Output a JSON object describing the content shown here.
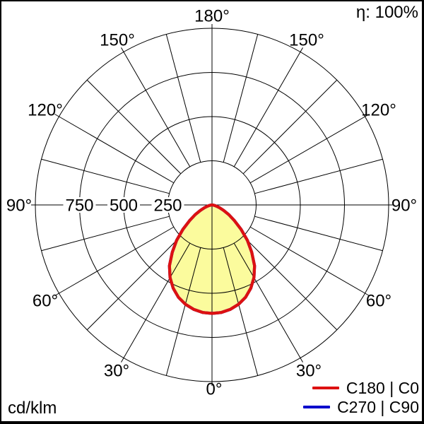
{
  "header": {
    "efficiency_label": "η: 100%"
  },
  "footer": {
    "unit_label": "cd/klm"
  },
  "legend": {
    "items": [
      {
        "label": "C180 | C0",
        "color": "#dd1111"
      },
      {
        "label": "C270 | C90",
        "color": "#0000cc"
      }
    ]
  },
  "chart_data": {
    "type": "polar",
    "subtype": "luminous-intensity-distribution",
    "unit": "cd/klm",
    "efficiency": "η: 100%",
    "orientation": "0° at bottom, 180° at top",
    "grid": {
      "rmax": 1000,
      "radial_ticks": [
        250,
        500,
        750,
        1000
      ],
      "radial_tick_labels": [
        "250",
        "500",
        "750"
      ],
      "angle_step_deg": 15,
      "angle_label_step_deg": 30,
      "grid_color": "#000000",
      "background": "#ffffff"
    },
    "angle_labels": [
      "0°",
      "30°",
      "60°",
      "90°",
      "120°",
      "150°",
      "180°"
    ],
    "series": [
      {
        "name": "C180 | C0",
        "color": "#dd1111",
        "fill": "#fbfb9d",
        "symmetric": true,
        "gamma_deg": [
          0,
          5,
          10,
          15,
          20,
          25,
          30,
          35,
          40,
          45,
          50,
          55,
          60,
          65,
          70,
          75,
          80,
          85,
          90
        ],
        "intensity_cd_per_klm": [
          614,
          611,
          600,
          582,
          556,
          520,
          475,
          420,
          350,
          283,
          215,
          155,
          110,
          72,
          45,
          25,
          12,
          4,
          0
        ]
      },
      {
        "name": "C270 | C90",
        "color": "#0000cc",
        "fill": "none",
        "symmetric": true,
        "note": "identical to C180|C0, hidden beneath red curve",
        "gamma_deg": [
          0,
          5,
          10,
          15,
          20,
          25,
          30,
          35,
          40,
          45,
          50,
          55,
          60,
          65,
          70,
          75,
          80,
          85,
          90
        ],
        "intensity_cd_per_klm": [
          614,
          611,
          600,
          582,
          556,
          520,
          475,
          420,
          350,
          283,
          215,
          155,
          110,
          72,
          45,
          25,
          12,
          4,
          0
        ]
      }
    ]
  }
}
